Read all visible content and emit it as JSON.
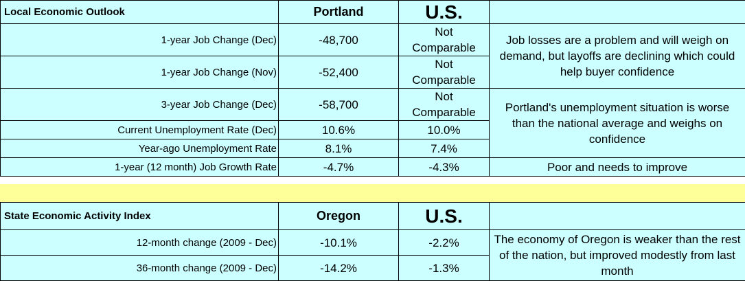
{
  "local": {
    "title": "Local Economic Outlook",
    "city": "Portland",
    "us": "U.S.",
    "rows": [
      {
        "label": "1-year Job Change (Dec)",
        "city": "-48,700",
        "us_line1": "Not",
        "us_line2": "Comparable"
      },
      {
        "label": "1-year Job Change (Nov)",
        "city": "-52,400",
        "us_line1": "Not",
        "us_line2": "Comparable"
      },
      {
        "label": "3-year Job Change (Dec)",
        "city": "-58,700",
        "us_line1": "Not",
        "us_line2": "Comparable"
      },
      {
        "label": "Current Unemployment Rate (Dec)",
        "city": "10.6%",
        "us": "10.0%"
      },
      {
        "label": "Year-ago Unemployment Rate",
        "city": "8.1%",
        "us": "7.4%"
      },
      {
        "label": "1-year (12 month) Job Growth Rate",
        "city": "-4.7%",
        "us": "-4.3%"
      }
    ],
    "comments": [
      "Job losses are a problem and will weigh on demand, but layoffs are declining which could help buyer confidence",
      "Portland's unemployment situation is worse than the national average and weighs on confidence",
      "Poor and needs to improve"
    ]
  },
  "state": {
    "title": "State Economic Activity Index",
    "state": "Oregon",
    "us": "U.S.",
    "rows": [
      {
        "label": "12-month change (2009 - Dec)",
        "state": "-10.1%",
        "us": "-2.2%"
      },
      {
        "label": "36-month change (2009 - Dec)",
        "state": "-14.2%",
        "us": "-1.3%"
      }
    ],
    "comment": "The economy of Oregon is weaker than the rest of the nation, but improved modestly from last month"
  },
  "colors": {
    "table_bg": "#ccffff",
    "divider_bg": "#ffff99",
    "border": "#000000"
  }
}
